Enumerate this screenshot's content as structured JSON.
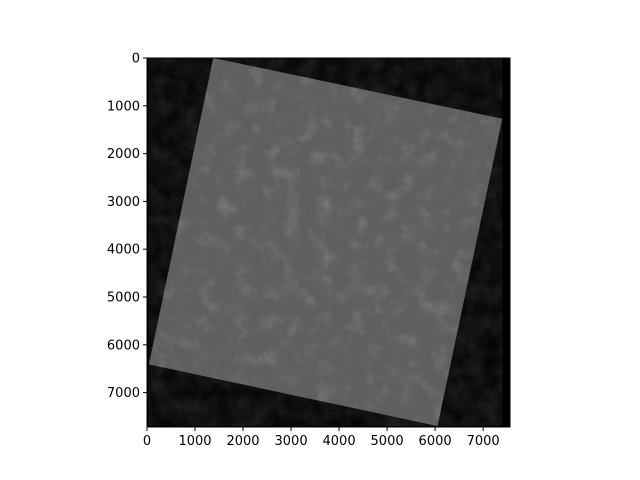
{
  "image": {
    "x_range": [
      0,
      7560
    ],
    "y_range": [
      0,
      7720
    ],
    "y_inverted": true,
    "x_ticks": [
      0,
      1000,
      2000,
      3000,
      4000,
      5000,
      6000,
      7000
    ],
    "y_ticks": [
      0,
      1000,
      2000,
      3000,
      4000,
      5000,
      6000,
      7000
    ],
    "x_tick_labels": [
      "0",
      "1000",
      "2000",
      "3000",
      "4000",
      "5000",
      "6000",
      "7000"
    ],
    "y_tick_labels": [
      "0",
      "1000",
      "2000",
      "3000",
      "4000",
      "5000",
      "6000",
      "7000"
    ],
    "scene_corners": [
      {
        "x": 1380,
        "y": 0
      },
      {
        "x": 7400,
        "y": 1270
      },
      {
        "x": 6050,
        "y": 7700
      },
      {
        "x": 40,
        "y": 6410
      }
    ],
    "colors": {
      "background": "#000000",
      "scene": "#606060",
      "figure_bg": "#ffffff",
      "axis": "#000000"
    }
  }
}
